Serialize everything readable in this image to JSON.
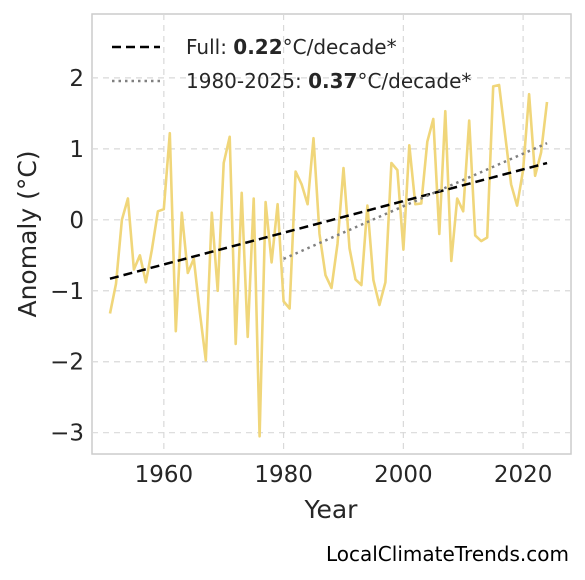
{
  "chart_data": {
    "type": "line",
    "xlabel": "Year",
    "ylabel": "Anomaly (°C)",
    "xlim": [
      1948,
      2028
    ],
    "ylim": [
      -3.3,
      2.9
    ],
    "xticks": [
      1960,
      1980,
      2000,
      2020
    ],
    "yticks": [
      -3,
      -2,
      -1,
      0,
      1,
      2
    ],
    "ytick_labels": [
      "−3",
      "−2",
      "−1",
      "0",
      "1",
      "2"
    ],
    "grid": true,
    "legend_position": "top-left",
    "legend": [
      {
        "prefix": "Full: ",
        "value": "0.22",
        "suffix": "°C/decade*",
        "style": "dashed",
        "color": "#000000"
      },
      {
        "prefix": "1980-2025: ",
        "value": "0.37",
        "suffix": "°C/decade*",
        "style": "dotted",
        "color": "#808080"
      }
    ],
    "series": [
      {
        "color": "#f0d67a",
        "x": [
          1951,
          1952,
          1953,
          1954,
          1955,
          1956,
          1957,
          1958,
          1959,
          1960,
          1961,
          1962,
          1963,
          1964,
          1965,
          1966,
          1967,
          1968,
          1969,
          1970,
          1971,
          1972,
          1973,
          1974,
          1975,
          1976,
          1977,
          1978,
          1979,
          1980,
          1981,
          1982,
          1983,
          1984,
          1985,
          1986,
          1987,
          1988,
          1989,
          1990,
          1991,
          1992,
          1993,
          1994,
          1995,
          1996,
          1997,
          1998,
          1999,
          2000,
          2001,
          2002,
          2003,
          2004,
          2005,
          2006,
          2007,
          2008,
          2009,
          2010,
          2011,
          2012,
          2013,
          2014,
          2015,
          2016,
          2017,
          2018,
          2019,
          2020,
          2021,
          2022,
          2023,
          2024
        ],
        "y": [
          -1.32,
          -0.9,
          0.0,
          0.3,
          -0.7,
          -0.5,
          -0.88,
          -0.42,
          0.12,
          0.15,
          1.22,
          -1.57,
          0.1,
          -0.75,
          -0.55,
          -1.3,
          -1.98,
          0.1,
          -1.0,
          0.8,
          1.17,
          -1.75,
          0.38,
          -1.65,
          0.3,
          -3.05,
          0.25,
          -0.6,
          0.22,
          -1.15,
          -1.25,
          0.68,
          0.5,
          0.22,
          1.15,
          -0.2,
          -0.78,
          -0.96,
          -0.34,
          0.73,
          -0.4,
          -0.84,
          -0.92,
          0.2,
          -0.85,
          -1.2,
          -0.88,
          0.8,
          0.7,
          -0.42,
          1.05,
          0.22,
          0.23,
          1.1,
          1.42,
          -0.2,
          1.53,
          -0.58,
          0.3,
          0.12,
          1.4,
          -0.22,
          -0.3,
          -0.25,
          1.88,
          1.9,
          1.2,
          0.5,
          0.2,
          0.7,
          1.77,
          0.62,
          0.95,
          1.66
        ]
      }
    ],
    "trend_full": {
      "x": [
        1951,
        2024
      ],
      "y": [
        -0.83,
        0.8
      ]
    },
    "trend_1980": {
      "x": [
        1980,
        2024
      ],
      "y": [
        -0.55,
        1.08
      ]
    }
  },
  "footer": "LocalClimateTrends.com"
}
